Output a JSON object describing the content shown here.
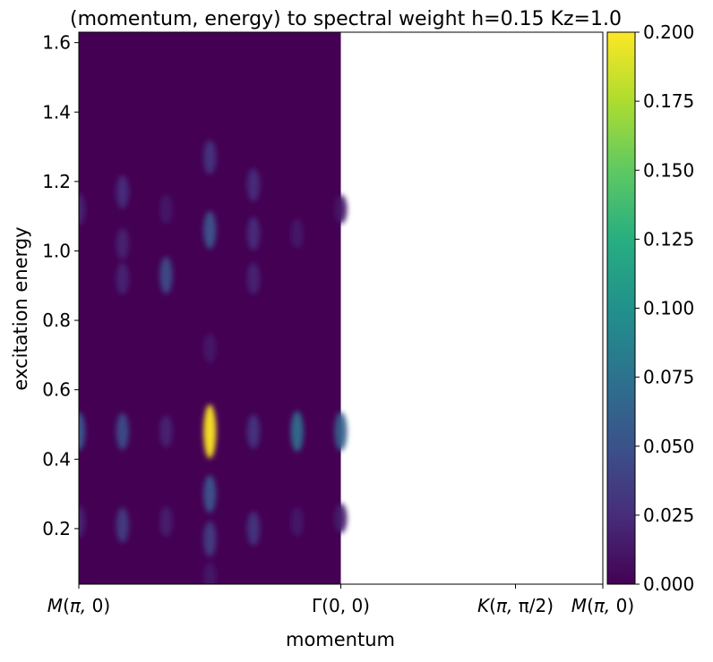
{
  "chart_data": {
    "type": "heatmap",
    "title": "(momentum, energy) to spectral weight h=0.15 Kz=1.0",
    "xlabel": "momentum",
    "ylabel": "excitation energy",
    "ylim": [
      0.04,
      1.63
    ],
    "xlim": [
      0,
      6
    ],
    "x_ticks": [
      {
        "value": 0,
        "label": "M(π, 0)"
      },
      {
        "value": 3,
        "label": "Γ(0, 0)"
      },
      {
        "value": 5,
        "label": "K(π, π/2)"
      },
      {
        "value": 6,
        "label": "M(π, 0)"
      }
    ],
    "y_ticks": [
      0.2,
      0.4,
      0.6,
      0.8,
      1.0,
      1.2,
      1.4,
      1.6
    ],
    "data_extent_x": [
      0,
      3
    ],
    "colormap": "viridis",
    "colorbar": {
      "min": 0.0,
      "max": 0.2,
      "ticks": [
        "0.000",
        "0.025",
        "0.050",
        "0.075",
        "0.100",
        "0.125",
        "0.150",
        "0.175",
        "0.200"
      ]
    },
    "peaks": [
      {
        "x": 0.0,
        "y": 0.48,
        "value": 0.055
      },
      {
        "x": 0.0,
        "y": 0.22,
        "value": 0.02
      },
      {
        "x": 0.0,
        "y": 1.12,
        "value": 0.02
      },
      {
        "x": 0.5,
        "y": 0.48,
        "value": 0.045
      },
      {
        "x": 0.5,
        "y": 0.21,
        "value": 0.035
      },
      {
        "x": 0.5,
        "y": 0.92,
        "value": 0.02
      },
      {
        "x": 0.5,
        "y": 1.02,
        "value": 0.018
      },
      {
        "x": 0.5,
        "y": 1.17,
        "value": 0.025
      },
      {
        "x": 1.0,
        "y": 0.48,
        "value": 0.02
      },
      {
        "x": 1.0,
        "y": 0.22,
        "value": 0.015
      },
      {
        "x": 1.0,
        "y": 0.93,
        "value": 0.045
      },
      {
        "x": 1.0,
        "y": 1.12,
        "value": 0.012
      },
      {
        "x": 1.5,
        "y": 0.48,
        "value": 0.2
      },
      {
        "x": 1.5,
        "y": 0.3,
        "value": 0.05
      },
      {
        "x": 1.5,
        "y": 0.17,
        "value": 0.035
      },
      {
        "x": 1.5,
        "y": 1.06,
        "value": 0.05
      },
      {
        "x": 1.5,
        "y": 1.27,
        "value": 0.03
      },
      {
        "x": 1.5,
        "y": 0.72,
        "value": 0.012
      },
      {
        "x": 1.5,
        "y": 0.06,
        "value": 0.012
      },
      {
        "x": 2.0,
        "y": 0.48,
        "value": 0.03
      },
      {
        "x": 2.0,
        "y": 0.2,
        "value": 0.03
      },
      {
        "x": 2.0,
        "y": 0.92,
        "value": 0.02
      },
      {
        "x": 2.0,
        "y": 1.05,
        "value": 0.025
      },
      {
        "x": 2.0,
        "y": 1.19,
        "value": 0.025
      },
      {
        "x": 2.5,
        "y": 0.48,
        "value": 0.07
      },
      {
        "x": 2.5,
        "y": 0.22,
        "value": 0.012
      },
      {
        "x": 2.5,
        "y": 1.05,
        "value": 0.012
      },
      {
        "x": 3.0,
        "y": 0.48,
        "value": 0.06
      },
      {
        "x": 3.0,
        "y": 0.23,
        "value": 0.015
      },
      {
        "x": 3.0,
        "y": 1.12,
        "value": 0.012
      }
    ]
  }
}
